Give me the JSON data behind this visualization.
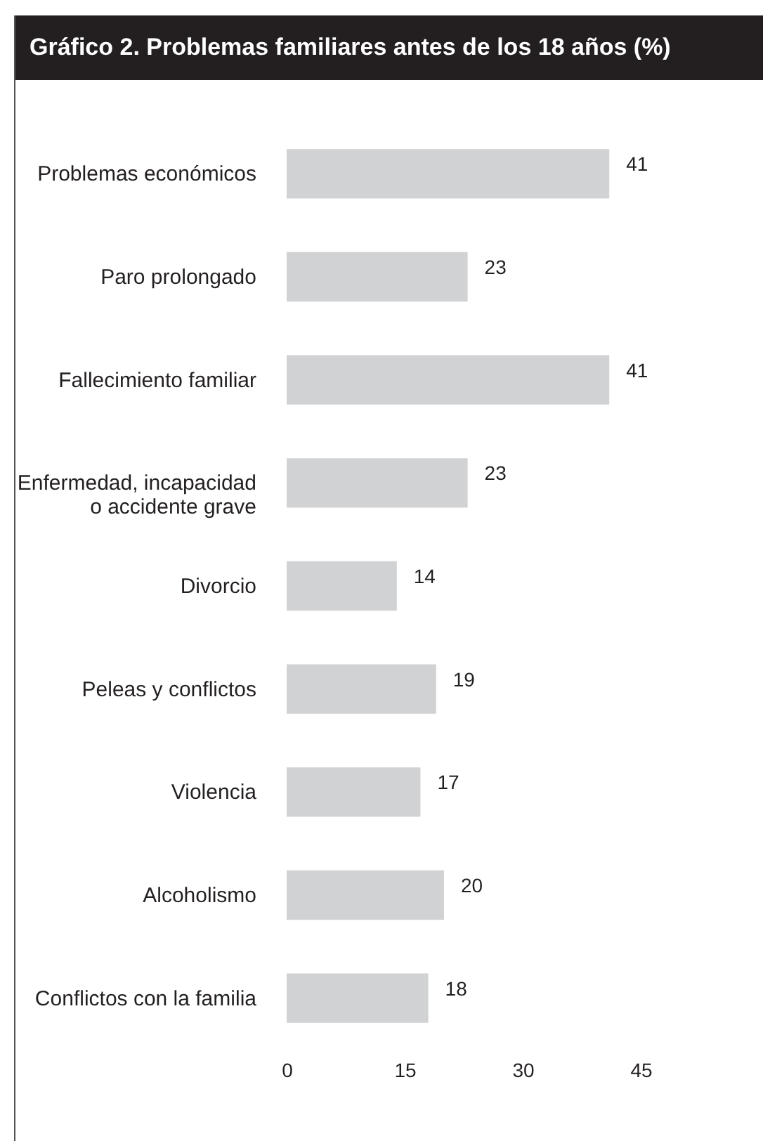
{
  "chart_data": {
    "type": "bar",
    "orientation": "horizontal",
    "title": "Gráfico 2. Problemas familiares antes de los 18 años (%)",
    "categories": [
      "Problemas económicos",
      "Paro prolongado",
      "Fallecimiento familiar",
      "Enfermedad, incapacidad\no accidente grave",
      "Divorcio",
      "Peleas y conflictos",
      "Violencia",
      "Alcoholismo",
      "Conflictos con la familia"
    ],
    "values": [
      41,
      23,
      41,
      23,
      14,
      19,
      17,
      20,
      18
    ],
    "color": "#d1d2d4",
    "xlim": [
      0,
      45
    ],
    "xticks": [
      0,
      15,
      30,
      45
    ],
    "grid": false,
    "data_labels": true
  }
}
